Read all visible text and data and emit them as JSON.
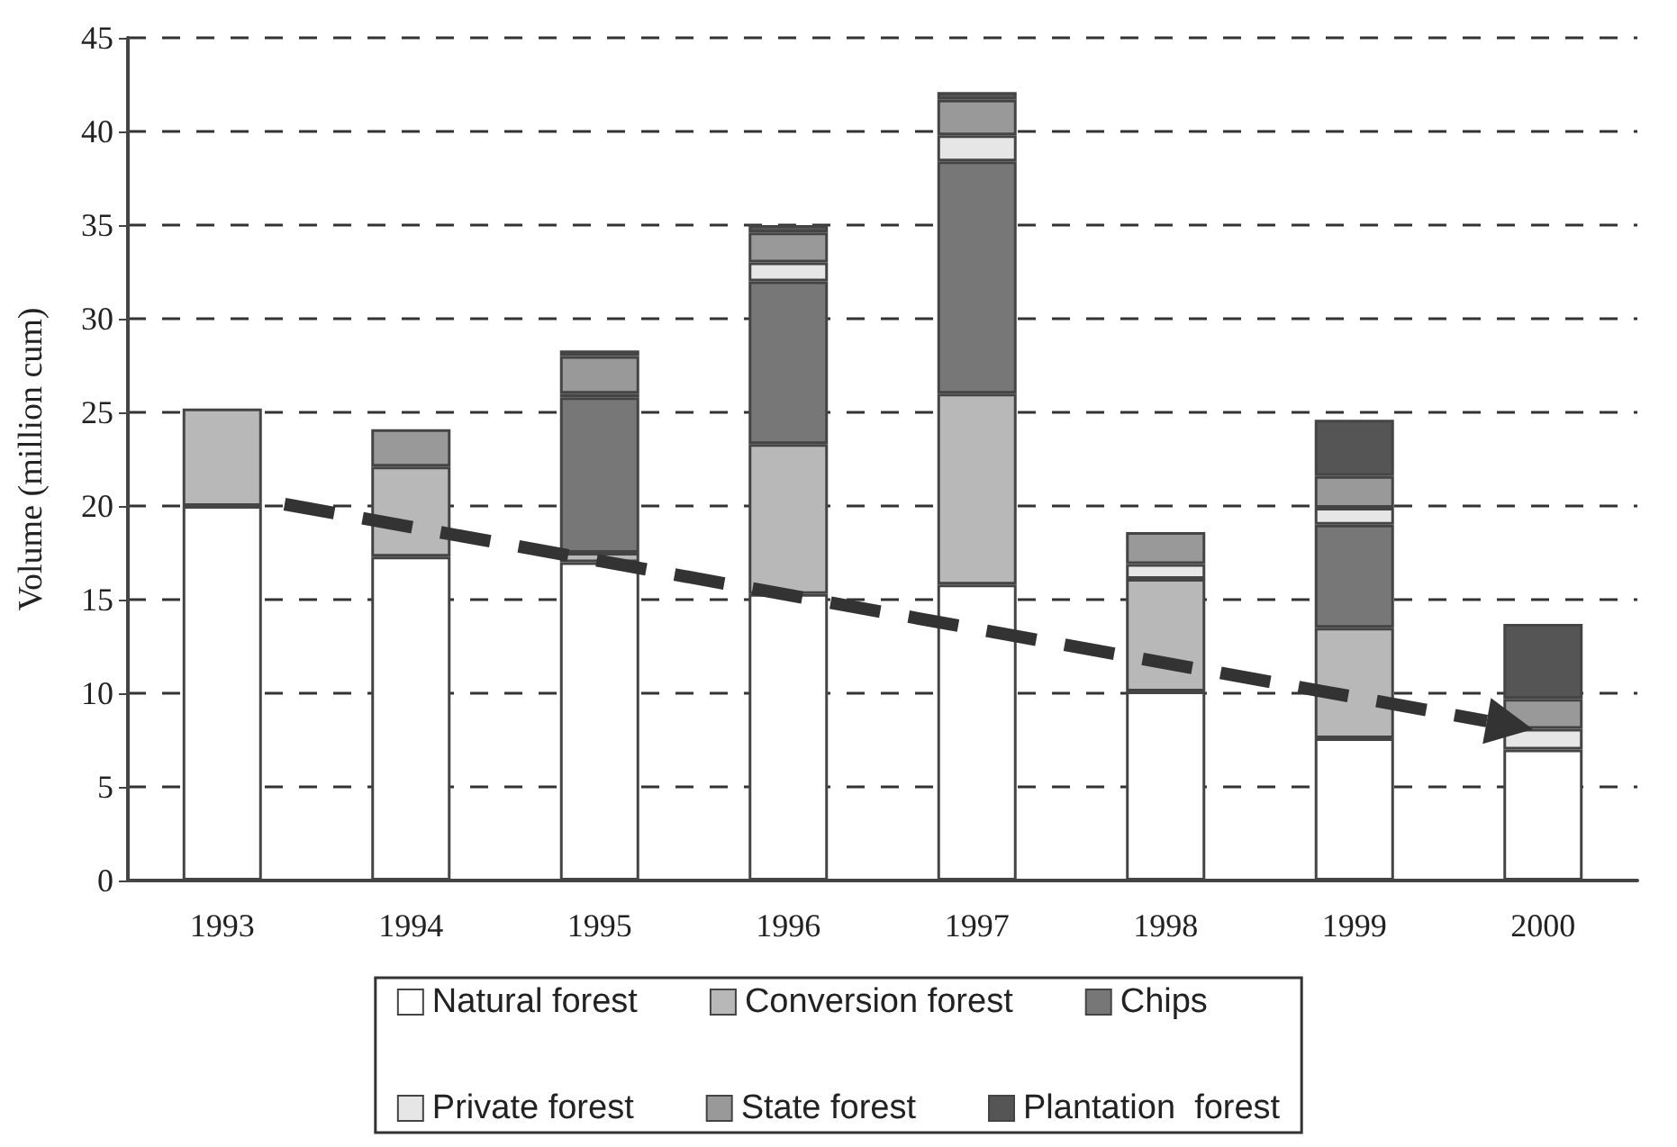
{
  "chart_data": {
    "type": "bar",
    "stacked": true,
    "ylabel": "Volume (million cum)",
    "categories": [
      "1993",
      "1994",
      "1995",
      "1996",
      "1997",
      "1998",
      "1999",
      "2000"
    ],
    "series": [
      {
        "name": "Natural forest",
        "color": "#ffffff",
        "values": [
          20,
          17.3,
          17.0,
          15.3,
          15.8,
          10.1,
          7.6,
          7.0
        ]
      },
      {
        "name": "Conversion forest",
        "color": "#b8b8b8",
        "values": [
          5.2,
          4.8,
          0.5,
          8.0,
          10.2,
          6.0,
          5.9,
          null
        ]
      },
      {
        "name": "Chips",
        "color": "#777777",
        "values": [
          null,
          null,
          8.3,
          8.7,
          12.4,
          null,
          5.5,
          null
        ]
      },
      {
        "name": "Private forest",
        "color": "#e6e6e6",
        "values": [
          null,
          null,
          0.2,
          1.0,
          1.4,
          0.8,
          0.9,
          1.1
        ]
      },
      {
        "name": "State forest",
        "color": "#999999",
        "values": [
          null,
          2.0,
          2.0,
          1.6,
          1.9,
          1.7,
          1.7,
          1.6
        ]
      },
      {
        "name": "Plantation  forest",
        "color": "#555555",
        "values": [
          null,
          null,
          0.3,
          0.4,
          0.4,
          null,
          3.0,
          4.0
        ]
      }
    ],
    "ylim": [
      0,
      45
    ],
    "yticks": [
      0,
      5,
      10,
      15,
      20,
      25,
      30,
      35,
      40,
      45
    ],
    "grid": "y",
    "legend": "bottom"
  }
}
